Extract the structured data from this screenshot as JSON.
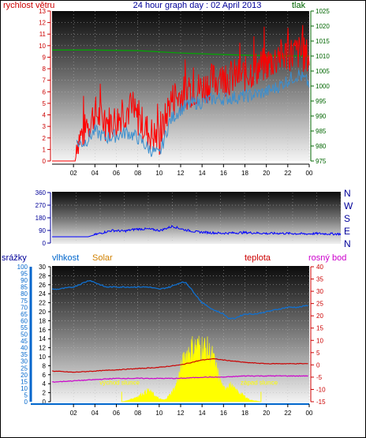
{
  "header": {
    "title": "24 hour graph day : 02 April 2013",
    "left_label": "rychlost větru",
    "right_label": "tlak"
  },
  "colors": {
    "wind": "#ff0000",
    "gust": "#ff0000",
    "wind_avg": "#3a8fd0",
    "pressure": "#00aa00",
    "direction": "#0000ff",
    "rain": "#0000aa",
    "humidity": "#1070d0",
    "solar": "#ffff00",
    "temperature": "#cc0000",
    "dewpoint": "#cc00cc",
    "axis_wind": "#cc0000",
    "axis_pressure": "#006600",
    "axis_dir": "#000099",
    "axis_rain": "#0066cc",
    "axis_temp": "#cc0000",
    "axis_dew": "#cc00cc",
    "label_solar": "#d08000"
  },
  "labels": {
    "srazky": "srážky",
    "vlhkost": "vlhkost",
    "solar": "Solar",
    "teplota": "teplota",
    "rosny_bod": "rosný bod",
    "sunrise": "východ slunce",
    "sunset": "západ slunce"
  },
  "time_ticks": [
    "02",
    "04",
    "06",
    "08",
    "10",
    "12",
    "14",
    "16",
    "18",
    "20",
    "22",
    "00"
  ],
  "chart_data": [
    {
      "type": "line",
      "title": "24 hour graph day : 02 April 2013",
      "xlabel": "",
      "ylabel": "rychlost větru",
      "y2label": "tlak",
      "x_range_hours": [
        0,
        24
      ],
      "ylim": [
        0,
        13
      ],
      "y_ticks": [
        0,
        1,
        2,
        3,
        4,
        5,
        6,
        7,
        8,
        9,
        10,
        11,
        12,
        13
      ],
      "y2lim": [
        975,
        1025
      ],
      "y2_ticks": [
        975,
        980,
        985,
        990,
        995,
        1000,
        1005,
        1010,
        1015,
        1020,
        1025
      ],
      "series": [
        {
          "axis": "left",
          "x": [
            0,
            2.2,
            2.3,
            3,
            4,
            5,
            6,
            7,
            8,
            9,
            9.5,
            10,
            10.5,
            11,
            12,
            13,
            14,
            15,
            16,
            17,
            18,
            19,
            20,
            21,
            22,
            23,
            24
          ],
          "values": [
            0,
            0,
            1.8,
            2.5,
            4.2,
            3.3,
            3.5,
            4.5,
            3.7,
            2.5,
            2.2,
            1.8,
            3.3,
            5.2,
            5.7,
            6.2,
            6.3,
            7.0,
            7.1,
            7.3,
            7.5,
            8.0,
            8.4,
            8.9,
            9.3,
            9.4,
            9.0
          ]
        },
        {
          "axis": "left",
          "x": [
            2.3,
            3,
            4,
            5,
            6,
            7,
            8,
            9,
            10,
            11,
            12,
            13,
            14,
            15,
            16,
            17,
            18,
            19,
            20,
            21,
            22,
            23,
            24
          ],
          "values": [
            1.5,
            1.6,
            2.6,
            2.0,
            2.2,
            2.5,
            2.0,
            1.1,
            0.5,
            3.5,
            4.5,
            5.0,
            5.1,
            5.4,
            5.4,
            5.5,
            5.6,
            5.8,
            6.0,
            6.4,
            7.0,
            7.5,
            6.7
          ]
        },
        {
          "axis": "right",
          "x": [
            0,
            4,
            8,
            12,
            16,
            20,
            24
          ],
          "values": [
            1012.0,
            1012.0,
            1011.8,
            1011.0,
            1010.5,
            1010.1,
            1010.0
          ]
        }
      ]
    },
    {
      "type": "line",
      "title": "",
      "xlabel": "",
      "ylabel": "",
      "x_range_hours": [
        0,
        24
      ],
      "ylim": [
        0,
        360
      ],
      "y_ticks": [
        0,
        90,
        180,
        270,
        360
      ],
      "y2_ticks": [
        "N",
        "W",
        "S",
        "E",
        "N"
      ],
      "series": [
        {
          "x": [
            0,
            1,
            2,
            3,
            4,
            5,
            6,
            7,
            8,
            9,
            10,
            11,
            12,
            13,
            14,
            15,
            16,
            17,
            18,
            19,
            20,
            21,
            22,
            23,
            24
          ],
          "values": [
            45,
            45,
            45,
            45,
            70,
            90,
            85,
            100,
            100,
            90,
            120,
            95,
            80,
            75,
            70,
            72,
            75,
            72,
            68,
            70,
            68,
            65,
            68,
            66,
            65
          ]
        }
      ]
    },
    {
      "type": "area",
      "title": "",
      "xlabel": "",
      "ylabel": "srážky",
      "x_range_hours": [
        0,
        24
      ],
      "ylim_rain": [
        0,
        100
      ],
      "rain_ticks": [
        0,
        5,
        10,
        15,
        20,
        25,
        30,
        35,
        40,
        45,
        50,
        55,
        60,
        65,
        70,
        75,
        80,
        85,
        90,
        95,
        100
      ],
      "ylim_humidity": [
        0,
        30
      ],
      "humidity_ticks": [
        0,
        2,
        4,
        6,
        8,
        10,
        12,
        14,
        16,
        18,
        20,
        22,
        24,
        26,
        28,
        30
      ],
      "ylim_temp": [
        -15,
        40
      ],
      "temp_ticks": [
        -15,
        -10,
        -5,
        0,
        5,
        10,
        15,
        20,
        25,
        30,
        35,
        40
      ],
      "sunrise_hour": 6.5,
      "sunset_hour": 19.5,
      "series": [
        {
          "name": "vlhkost",
          "axis": "humidity",
          "x": [
            0,
            0.5,
            2,
            3,
            3.5,
            4,
            5,
            6,
            7,
            8,
            9,
            10,
            11,
            12,
            12.5,
            13,
            14,
            15,
            16,
            16.5,
            17,
            18,
            19,
            20,
            21,
            22,
            23,
            24
          ],
          "values": [
            25.0,
            25.0,
            25.5,
            26.5,
            27.0,
            26.5,
            25.5,
            25.5,
            25.5,
            25.5,
            25.5,
            25.0,
            25.5,
            26.5,
            26.5,
            25.0,
            22.0,
            20.5,
            19.5,
            18.5,
            18.5,
            19.5,
            19.5,
            20.0,
            20.5,
            21.0,
            21.0,
            21.5
          ]
        },
        {
          "name": "teplota",
          "axis": "temp",
          "x": [
            0,
            2,
            4,
            6,
            8,
            10,
            11,
            12,
            13,
            14,
            15,
            16,
            17,
            18,
            20,
            22,
            24
          ],
          "values": [
            -2.5,
            -3.0,
            -2.5,
            -2.0,
            -1.5,
            -1.0,
            -0.5,
            0.0,
            1.0,
            2.0,
            2.5,
            2.0,
            1.5,
            1.0,
            0.5,
            0.5,
            0.5
          ]
        },
        {
          "name": "rosný bod",
          "axis": "temp",
          "x": [
            0,
            2,
            4,
            6,
            8,
            10,
            12,
            14,
            16,
            18,
            20,
            22,
            24
          ],
          "values": [
            -7.0,
            -6.5,
            -6.0,
            -5.5,
            -5.5,
            -5.5,
            -5.5,
            -5.0,
            -5.0,
            -4.5,
            -4.5,
            -4.5,
            -4.5
          ]
        },
        {
          "name": "Solar",
          "axis": "humidity",
          "x": [
            6.5,
            7,
            8,
            9,
            10,
            10.5,
            11,
            11.5,
            12,
            12.5,
            13,
            13.5,
            14,
            14.5,
            15,
            15.5,
            16,
            16.5,
            17,
            18,
            18.5,
            19.5
          ],
          "values": [
            0,
            0.3,
            1.5,
            3.2,
            0.8,
            0.5,
            2.0,
            4.0,
            9.0,
            13.5,
            15.0,
            15.5,
            15.5,
            14.5,
            12.5,
            7.5,
            3.5,
            5.0,
            3.5,
            1.5,
            0.5,
            0
          ]
        }
      ]
    }
  ]
}
